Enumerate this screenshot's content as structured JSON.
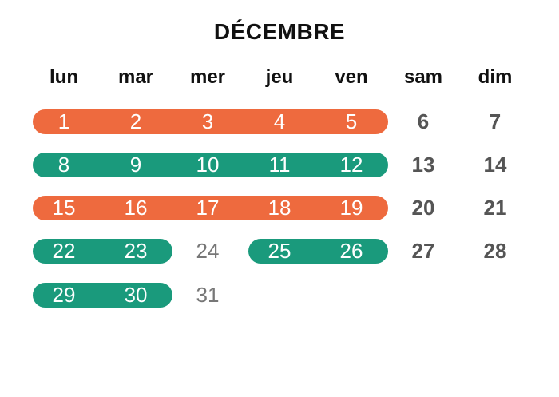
{
  "title": "DÉCEMBRE",
  "weekdays": [
    "lun",
    "mar",
    "mer",
    "jeu",
    "ven",
    "sam",
    "dim"
  ],
  "colors": {
    "orange": "#EE6A3E",
    "green": "#1A9A7C",
    "plain_text": "#777777",
    "weekend_text": "#555555"
  },
  "weeks": [
    {
      "days": [
        "1",
        "2",
        "3",
        "4",
        "5",
        "6",
        "7"
      ]
    },
    {
      "days": [
        "8",
        "9",
        "10",
        "11",
        "12",
        "13",
        "14"
      ]
    },
    {
      "days": [
        "15",
        "16",
        "17",
        "18",
        "19",
        "20",
        "21"
      ]
    },
    {
      "days": [
        "22",
        "23",
        "24",
        "25",
        "26",
        "27",
        "28"
      ]
    },
    {
      "days": [
        "29",
        "30",
        "31",
        "",
        "",
        "",
        ""
      ]
    }
  ],
  "highlights": [
    {
      "week": 0,
      "from_day": 0,
      "to_day": 4,
      "color": "orange"
    },
    {
      "week": 1,
      "from_day": 0,
      "to_day": 4,
      "color": "green"
    },
    {
      "week": 2,
      "from_day": 0,
      "to_day": 4,
      "color": "orange"
    },
    {
      "week": 3,
      "from_day": 0,
      "to_day": 1,
      "color": "green"
    },
    {
      "week": 3,
      "from_day": 3,
      "to_day": 4,
      "color": "green"
    },
    {
      "week": 4,
      "from_day": 0,
      "to_day": 1,
      "color": "green"
    }
  ]
}
